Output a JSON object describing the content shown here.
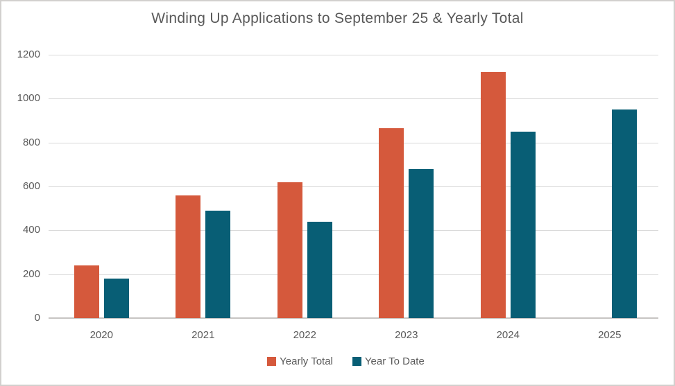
{
  "chart_data": {
    "type": "bar",
    "title": "Winding Up Applications to September 25 & Yearly Total",
    "categories": [
      "2020",
      "2021",
      "2022",
      "2023",
      "2024",
      "2025"
    ],
    "series": [
      {
        "name": "Yearly Total",
        "color": "#d5593c",
        "values": [
          240,
          560,
          620,
          865,
          1120,
          null
        ]
      },
      {
        "name": "Year To Date",
        "color": "#085e75",
        "values": [
          180,
          490,
          440,
          680,
          850,
          950
        ]
      }
    ],
    "xlabel": "",
    "ylabel": "",
    "ylim": [
      0,
      1200
    ],
    "ytick_step": 200,
    "ytick_labels": [
      "0",
      "200",
      "400",
      "600",
      "800",
      "1000",
      "1200"
    ],
    "grid": "horizontal",
    "legend_position": "bottom"
  },
  "styles": {
    "background_color": "#ffffff",
    "frame_border_color": "#d2d0ce",
    "grid_color": "#d9d9d9",
    "axis_line_color": "#c6c4c2",
    "text_color": "#595959"
  }
}
